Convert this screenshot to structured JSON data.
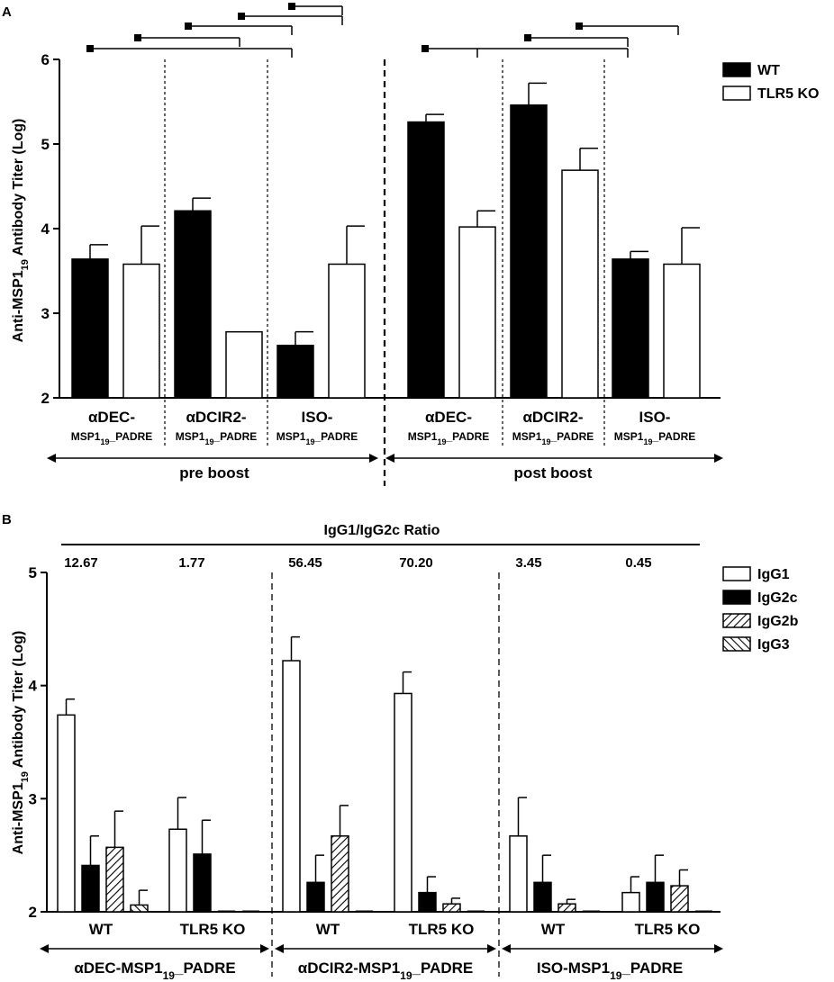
{
  "chart_data": [
    {
      "panel_label": "A",
      "type": "bar",
      "ylabel": "Anti-MSP1",
      "ylabel_sub": "19",
      "ylabel_rest": " Antibody Titer (Log)",
      "ylim": [
        2,
        6
      ],
      "yticks": [
        "2",
        "3",
        "4",
        "5",
        "6"
      ],
      "grid": false,
      "legend_position": "top-right",
      "series_names": [
        "WT",
        "TLR5 KO"
      ],
      "groups": [
        {
          "top": "αDEC-",
          "sub": "MSP1",
          "subsub": "19",
          "tail": "_PADRE",
          "phase": "pre boost",
          "values": [
            3.64,
            3.58
          ],
          "errors": [
            0.17,
            0.45
          ]
        },
        {
          "top": "αDCIR2-",
          "sub": "MSP1",
          "subsub": "19",
          "tail": "_PADRE",
          "phase": "pre boost",
          "values": [
            4.21,
            2.78
          ],
          "errors": [
            0.15,
            0
          ]
        },
        {
          "top": "ISO-",
          "sub": "MSP1",
          "subsub": "19",
          "tail": "_PADRE",
          "phase": "pre boost",
          "values": [
            2.62,
            3.58
          ],
          "errors": [
            0.16,
            0.45
          ]
        },
        {
          "top": "αDEC-",
          "sub": "MSP1",
          "subsub": "19",
          "tail": "_PADRE",
          "phase": "post boost",
          "values": [
            5.26,
            4.02
          ],
          "errors": [
            0.09,
            0.19
          ]
        },
        {
          "top": "αDCIR2-",
          "sub": "MSP1",
          "subsub": "19",
          "tail": "_PADRE",
          "phase": "post boost",
          "values": [
            5.46,
            4.69
          ],
          "errors": [
            0.26,
            0.26
          ]
        },
        {
          "top": "ISO-",
          "sub": "MSP1",
          "subsub": "19",
          "tail": "_PADRE",
          "phase": "post boost",
          "values": [
            3.64,
            3.58
          ],
          "errors": [
            0.09,
            0.43
          ]
        }
      ],
      "phase_labels": [
        "pre boost",
        "post boost"
      ]
    },
    {
      "panel_label": "B",
      "type": "bar",
      "ylabel": "Anti-MSP1",
      "ylabel_sub": "19",
      "ylabel_rest": " Antibody Titer (Log)",
      "ylim": [
        2,
        5
      ],
      "yticks": [
        "2",
        "3",
        "4",
        "5"
      ],
      "grid": false,
      "legend_position": "top-right",
      "series_names": [
        "IgG1",
        "IgG2c",
        "IgG2b",
        "IgG3"
      ],
      "ratio_title": "IgG1/IgG2c Ratio",
      "ratios": [
        "12.67",
        "1.77",
        "56.45",
        "70.20",
        "3.45",
        "0.45"
      ],
      "subgroup_labels": [
        "WT",
        "TLR5 KO",
        "WT",
        "TLR5 KO",
        "WT",
        "TLR5 KO"
      ],
      "construct_labels": [
        {
          "main": "αDEC-MSP1",
          "sub": "19",
          "tail": "_PADRE"
        },
        {
          "main": "αDCIR2-MSP1",
          "sub": "19",
          "tail": "_PADRE"
        },
        {
          "main": "ISO-MSP1",
          "sub": "19",
          "tail": "_PADRE"
        }
      ],
      "groups": [
        {
          "values": [
            3.74,
            2.41,
            2.57,
            2.06
          ],
          "errors": [
            0.14,
            0.26,
            0.32,
            0.13
          ]
        },
        {
          "values": [
            2.73,
            2.51,
            2.0,
            2.0
          ],
          "errors": [
            0.28,
            0.3,
            0,
            0
          ]
        },
        {
          "values": [
            4.22,
            2.26,
            2.67,
            2.0
          ],
          "errors": [
            0.21,
            0.24,
            0.27,
            0
          ]
        },
        {
          "values": [
            3.93,
            2.17,
            2.07,
            2.0
          ],
          "errors": [
            0.19,
            0.14,
            0.05,
            0
          ]
        },
        {
          "values": [
            2.67,
            2.26,
            2.07,
            2.0
          ],
          "errors": [
            0.34,
            0.24,
            0.04,
            0
          ]
        },
        {
          "values": [
            2.17,
            2.26,
            2.23,
            2.0
          ],
          "errors": [
            0.14,
            0.24,
            0.14,
            0
          ]
        }
      ]
    }
  ]
}
